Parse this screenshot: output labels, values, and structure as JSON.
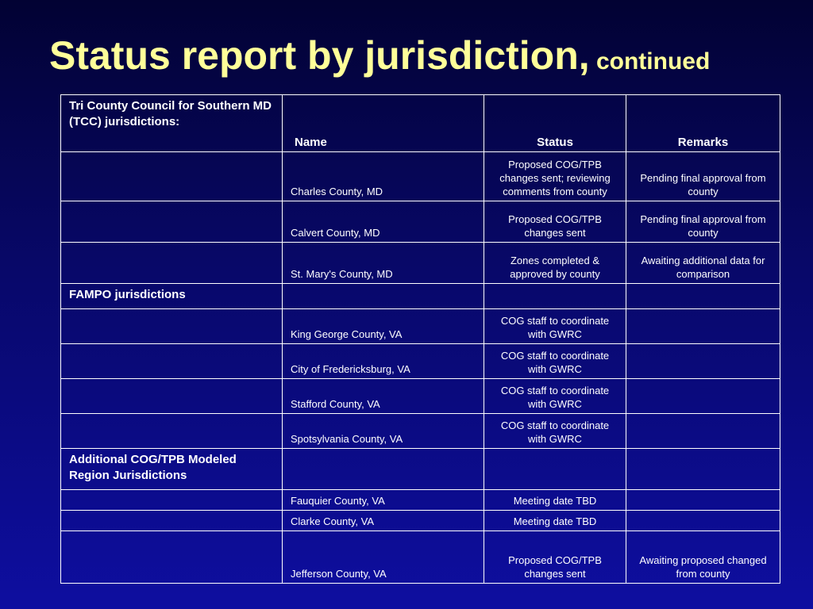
{
  "slide": {
    "title": "Status report by jurisdiction,",
    "title_suffix": " continued"
  },
  "table": {
    "group_tcc": "Tri County Council for Southern MD (TCC) jurisdictions:",
    "headers": {
      "name": "Name",
      "status": "Status",
      "remarks": "Remarks"
    },
    "tcc_rows": [
      {
        "name": "Charles County, MD",
        "status": "Proposed COG/TPB changes sent; reviewing comments from county",
        "remarks": "Pending final approval from county"
      },
      {
        "name": "Calvert County, MD",
        "status": "Proposed COG/TPB changes sent",
        "remarks": "Pending final approval from county"
      },
      {
        "name": "St. Mary's County, MD",
        "status": "Zones completed & approved by county",
        "remarks": "Awaiting additional data for comparison"
      }
    ],
    "group_fampo": "FAMPO jurisdictions",
    "fampo_rows": [
      {
        "name": "King George County, VA",
        "status": "COG staff to coordinate with GWRC",
        "remarks": ""
      },
      {
        "name": "City of Fredericksburg, VA",
        "status": "COG staff to coordinate with GWRC",
        "remarks": ""
      },
      {
        "name": "Stafford County, VA",
        "status": "COG staff to coordinate with GWRC",
        "remarks": ""
      },
      {
        "name": "Spotsylvania County, VA",
        "status": "COG staff to coordinate with GWRC",
        "remarks": ""
      }
    ],
    "group_additional": "Additional COG/TPB Modeled Region Jurisdictions",
    "additional_rows": [
      {
        "name": "Fauquier County, VA",
        "status": "Meeting date TBD",
        "remarks": ""
      },
      {
        "name": "Clarke County, VA",
        "status": "Meeting date TBD",
        "remarks": ""
      },
      {
        "name": "Jefferson County, VA",
        "status": "Proposed COG/TPB changes sent",
        "remarks": "Awaiting proposed changed from county"
      }
    ]
  }
}
